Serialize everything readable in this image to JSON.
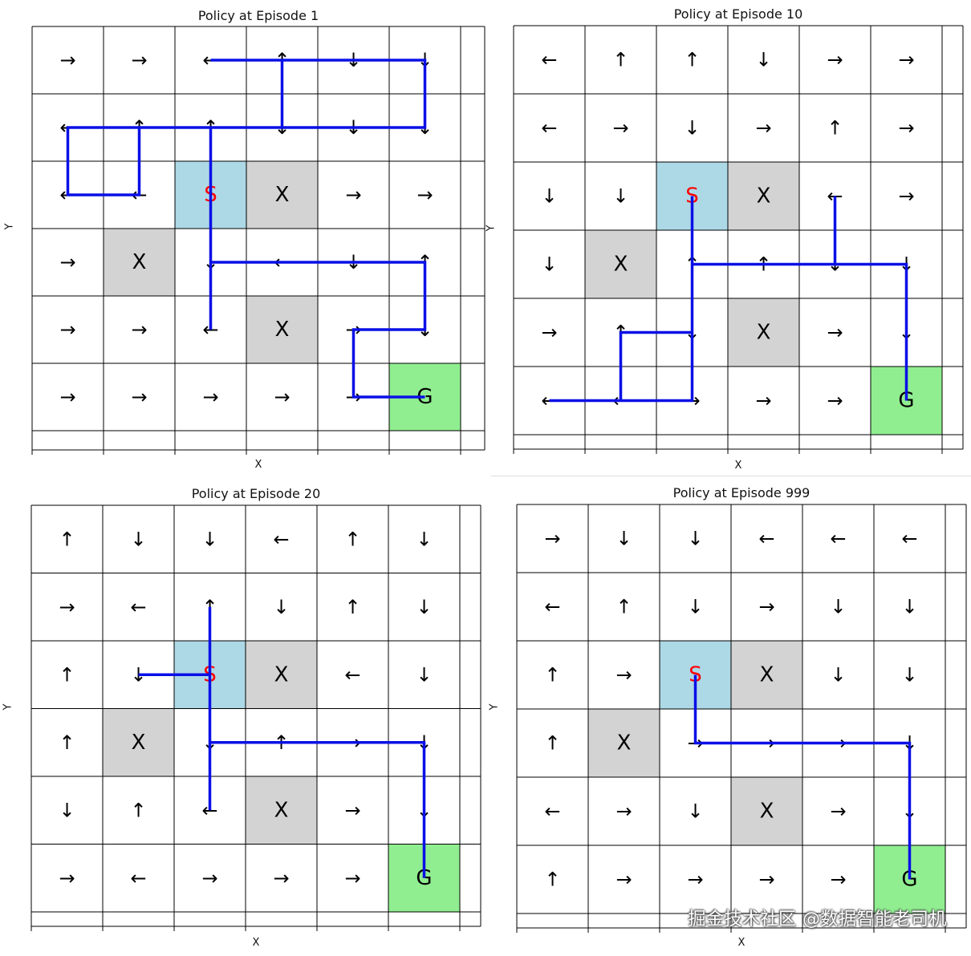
{
  "symbols": {
    "start": "S",
    "goal": "G",
    "obstacle": "X"
  },
  "axis": {
    "x": "X",
    "y": "Y"
  },
  "colors": {
    "start": "#add8e6",
    "goal": "#90ee90",
    "obstacle": "#d3d3d3",
    "path": "#0a10e6",
    "start_text": "#ff0000"
  },
  "start": [
    2,
    2
  ],
  "goal": [
    5,
    5
  ],
  "obstacles": [
    [
      3,
      2
    ],
    [
      1,
      3
    ],
    [
      3,
      4
    ]
  ],
  "panels": [
    {
      "title": "Policy at Episode 1",
      "arrows": [
        [
          "→",
          "→",
          "←",
          "↑",
          "↓",
          "↓"
        ],
        [
          "←",
          "↑",
          "↑",
          "↓",
          "↓",
          "↓"
        ],
        [
          "←",
          "←",
          "",
          "",
          "→",
          "→"
        ],
        [
          "→",
          "",
          "↓",
          "←",
          "↓",
          "↑"
        ],
        [
          "→",
          "→",
          "←",
          "",
          "→",
          "↓"
        ],
        [
          "→",
          "→",
          "→",
          "→",
          "→",
          ""
        ]
      ],
      "path": [
        [
          2,
          2
        ],
        [
          2,
          1
        ],
        [
          1,
          1
        ],
        [
          1,
          2
        ],
        [
          0,
          2
        ],
        [
          0,
          1
        ],
        [
          3,
          1
        ],
        [
          3,
          0
        ],
        [
          2,
          0
        ],
        [
          5,
          0
        ],
        [
          5,
          1
        ],
        [
          2,
          1
        ],
        [
          2,
          4
        ],
        [
          2,
          3
        ],
        [
          5,
          3
        ],
        [
          5,
          4
        ],
        [
          4,
          4
        ],
        [
          4,
          5
        ],
        [
          5,
          5
        ]
      ]
    },
    {
      "title": "Policy at Episode 10",
      "arrows": [
        [
          "←",
          "↑",
          "↑",
          "↓",
          "→",
          "→"
        ],
        [
          "←",
          "→",
          "↓",
          "→",
          "↑",
          "→"
        ],
        [
          "↓",
          "↓",
          "",
          "",
          "←",
          "→"
        ],
        [
          "↓",
          "",
          "↑",
          "↑",
          "↓",
          "↓"
        ],
        [
          "→",
          "↑",
          "↓",
          "",
          "→",
          "↓"
        ],
        [
          "←",
          "←",
          "→",
          "→",
          "→",
          ""
        ]
      ],
      "path": [
        [
          2,
          2
        ],
        [
          2,
          5
        ],
        [
          0,
          5
        ],
        [
          1,
          5
        ],
        [
          1,
          4
        ],
        [
          2,
          4
        ],
        [
          2,
          3
        ],
        [
          5,
          3
        ],
        [
          5,
          5
        ],
        [
          5,
          3
        ],
        [
          4,
          3
        ],
        [
          4,
          2
        ]
      ]
    },
    {
      "title": "Policy at Episode 20",
      "arrows": [
        [
          "↑",
          "↓",
          "↓",
          "←",
          "↑",
          "↓"
        ],
        [
          "→",
          "←",
          "↑",
          "↓",
          "↑",
          "↓"
        ],
        [
          "↑",
          "↓",
          "",
          "",
          "←",
          "↓"
        ],
        [
          "↑",
          "",
          "↓",
          "↑",
          "→",
          "↓"
        ],
        [
          "↓",
          "↑",
          "←",
          "",
          "→",
          "↓"
        ],
        [
          "→",
          "←",
          "→",
          "→",
          "→",
          ""
        ]
      ],
      "path": [
        [
          2,
          2
        ],
        [
          1,
          2
        ],
        [
          2,
          2
        ],
        [
          2,
          1
        ],
        [
          2,
          4
        ],
        [
          2,
          3
        ],
        [
          5,
          3
        ],
        [
          5,
          5
        ]
      ]
    },
    {
      "title": "Policy at Episode 999",
      "arrows": [
        [
          "→",
          "↓",
          "↓",
          "←",
          "←",
          "←"
        ],
        [
          "←",
          "↑",
          "↓",
          "→",
          "↓",
          "↓"
        ],
        [
          "↑",
          "→",
          "",
          "",
          "↓",
          "↓"
        ],
        [
          "↑",
          "",
          "→",
          "→",
          "→",
          "↓"
        ],
        [
          "←",
          "→",
          "↓",
          "",
          "→",
          "↓"
        ],
        [
          "↑",
          "→",
          "→",
          "→",
          "→",
          ""
        ]
      ],
      "path": [
        [
          2,
          2
        ],
        [
          2,
          3
        ],
        [
          5,
          3
        ],
        [
          5,
          5
        ]
      ]
    }
  ],
  "watermark": "掘金技术社区 @数据智能老司机"
}
